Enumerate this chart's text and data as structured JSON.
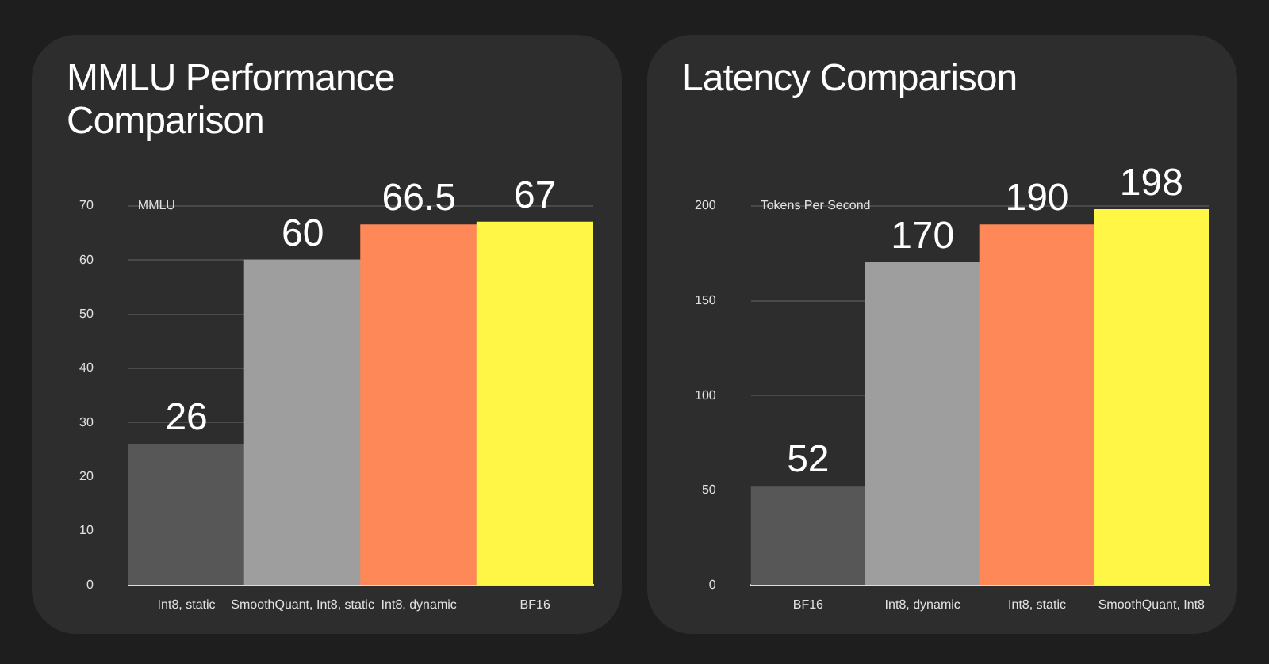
{
  "chart_data": [
    {
      "type": "bar",
      "title": "MMLU Performance Comparison",
      "ylabel": "MMLU",
      "categories": [
        "Int8, static",
        "SmoothQuant, Int8, static",
        "Int8, dynamic",
        "BF16"
      ],
      "values": [
        26,
        60,
        66.5,
        67
      ],
      "colors": [
        "#575757",
        "#9e9e9e",
        "#ff8859",
        "#fff645"
      ],
      "ylim": [
        0,
        70
      ],
      "yticks": [
        0,
        10,
        20,
        30,
        40,
        50,
        60,
        70
      ],
      "grid": "y",
      "data_labels": true,
      "legend": false
    },
    {
      "type": "bar",
      "title": "Latency Comparison",
      "ylabel": "Tokens Per Second",
      "categories": [
        "BF16",
        "Int8, dynamic",
        "Int8, static",
        "SmoothQuant, Int8"
      ],
      "values": [
        52,
        170,
        190,
        198
      ],
      "colors": [
        "#575757",
        "#9e9e9e",
        "#ff8859",
        "#fff645"
      ],
      "ylim": [
        0,
        200
      ],
      "yticks": [
        0,
        50,
        100,
        150,
        200
      ],
      "grid": "y",
      "data_labels": true,
      "legend": false
    }
  ]
}
